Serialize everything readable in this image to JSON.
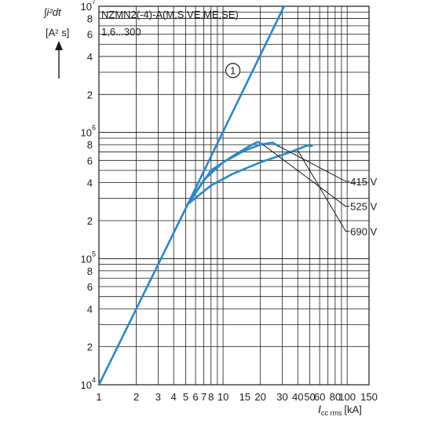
{
  "chart_data": {
    "type": "line",
    "x_scale": "log",
    "y_scale": "log",
    "xlim": [
      1,
      150
    ],
    "ylim": [
      10000,
      10000000
    ],
    "x_ticks": [
      1,
      2,
      3,
      4,
      5,
      6,
      7,
      8,
      10,
      15,
      20,
      30,
      40,
      50,
      60,
      80,
      100,
      150
    ],
    "x_tick_labels": [
      "1",
      "2",
      "3",
      "4",
      "5",
      "6",
      "7",
      "8",
      "10",
      "15",
      "20",
      "30",
      "40",
      "50",
      "60",
      "80",
      "100",
      "150"
    ],
    "y_ticks": [
      {
        "value": 10000,
        "label": "10",
        "exp": "4"
      },
      {
        "value": 20000,
        "label": "2",
        "exp": ""
      },
      {
        "value": 40000,
        "label": "4",
        "exp": ""
      },
      {
        "value": 60000,
        "label": "6",
        "exp": ""
      },
      {
        "value": 80000,
        "label": "8",
        "exp": ""
      },
      {
        "value": 100000,
        "label": "10",
        "exp": "5"
      },
      {
        "value": 200000,
        "label": "2",
        "exp": ""
      },
      {
        "value": 400000,
        "label": "4",
        "exp": ""
      },
      {
        "value": 600000,
        "label": "6",
        "exp": ""
      },
      {
        "value": 800000,
        "label": "8",
        "exp": ""
      },
      {
        "value": 1000000,
        "label": "10",
        "exp": "6"
      },
      {
        "value": 2000000,
        "label": "2",
        "exp": ""
      },
      {
        "value": 4000000,
        "label": "4",
        "exp": ""
      },
      {
        "value": 6000000,
        "label": "6",
        "exp": ""
      },
      {
        "value": 8000000,
        "label": "8",
        "exp": ""
      },
      {
        "value": 10000000,
        "label": "10",
        "exp": "7"
      }
    ],
    "ylabel_line1": "∫i²dt",
    "ylabel_line2": "[A² s]",
    "xlabel_main": "I",
    "xlabel_sub": "cc rms",
    "xlabel_unit": "[kA]",
    "title_line1": "NZMN2(-4)-A(M,S,VE,ME,SE)",
    "title_line2": "1,6...300",
    "grid": true,
    "series": [
      {
        "name": "1",
        "color": "#2d86c4",
        "points": [
          [
            1,
            10000
          ],
          [
            5.2,
            270000
          ],
          [
            31,
            10000000
          ]
        ]
      },
      {
        "name": "415 V",
        "color": "#2d86c4",
        "points": [
          [
            5.2,
            270000
          ],
          [
            7,
            420000
          ],
          [
            10,
            580000
          ],
          [
            15,
            720000
          ],
          [
            20,
            800000
          ],
          [
            25,
            830000
          ],
          [
            28,
            780000
          ]
        ]
      },
      {
        "name": "525 V",
        "color": "#2d86c4",
        "points": [
          [
            5.2,
            270000
          ],
          [
            8,
            500000
          ],
          [
            12,
            650000
          ],
          [
            16,
            770000
          ],
          [
            19,
            840000
          ],
          [
            21,
            800000
          ]
        ]
      },
      {
        "name": "690 V",
        "color": "#2d86c4",
        "points": [
          [
            5.2,
            270000
          ],
          [
            8,
            380000
          ],
          [
            12,
            470000
          ],
          [
            20,
            580000
          ],
          [
            35,
            700000
          ],
          [
            48,
            790000
          ],
          [
            52,
            780000
          ]
        ]
      }
    ],
    "annotations": [
      {
        "text": "1",
        "style": "circled",
        "at": [
          12,
          3100000
        ]
      },
      {
        "text": "415 V",
        "leader_from": [
          28,
          780000
        ],
        "at": [
          100,
          410000
        ]
      },
      {
        "text": "525 V",
        "leader_from": [
          21,
          800000
        ],
        "at": [
          100,
          260000
        ]
      },
      {
        "text": "690 V",
        "leader_from": [
          40,
          720000
        ],
        "at": [
          100,
          165000
        ]
      }
    ]
  }
}
